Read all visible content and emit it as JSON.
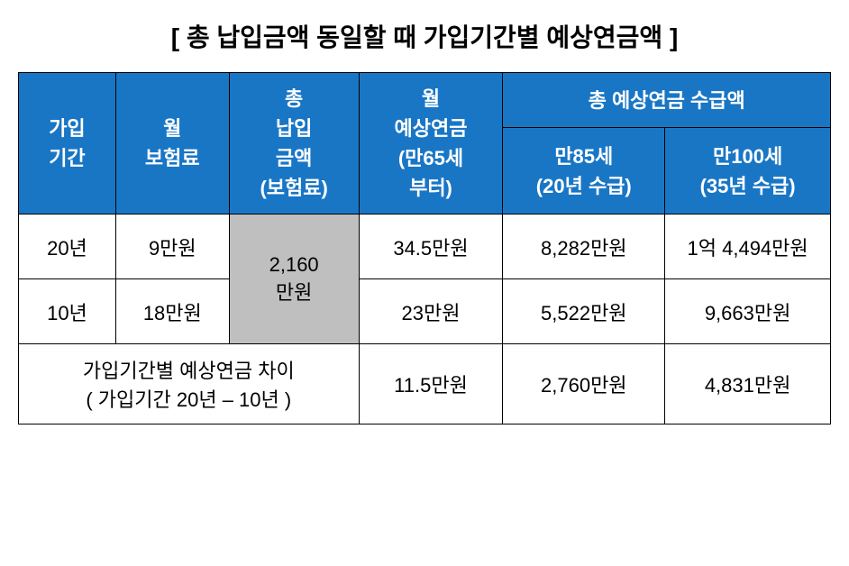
{
  "title": "[ 총 납입금액 동일할 때 가입기간별 예상연금액 ]",
  "headers": {
    "period": "가입\n기간",
    "premium": "월\n보험료",
    "total_payment": "총\n납입\n금액\n(보험료)",
    "monthly_pension": "월\n예상연금\n(만65세\n부터)",
    "total_pension_group": "총 예상연금 수급액",
    "age85": "만85세\n(20년 수급)",
    "age100": "만100세\n(35년 수급)"
  },
  "rows": [
    {
      "period": "20년",
      "premium": "9만원",
      "monthly": "34.5만원",
      "age85": "8,282만원",
      "age100": "1억 4,494만원"
    },
    {
      "period": "10년",
      "premium": "18만원",
      "monthly": "23만원",
      "age85": "5,522만원",
      "age100": "9,663만원"
    }
  ],
  "merged_total": "2,160\n만원",
  "diff_row": {
    "label": "가입기간별 예상연금 차이\n( 가입기간 20년 – 10년 )",
    "monthly": "11.5만원",
    "age85": "2,760만원",
    "age100": "4,831만원"
  },
  "colors": {
    "header_bg": "#1976c5",
    "header_text": "#ffffff",
    "cell_bg": "#ffffff",
    "cell_text": "#000000",
    "highlight_bg": "#bfbfbf",
    "border": "#000000"
  },
  "fonts": {
    "title_size": 28,
    "header_size": 22,
    "cell_size": 22
  }
}
